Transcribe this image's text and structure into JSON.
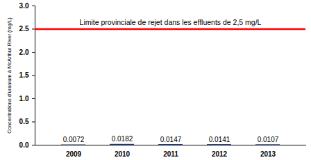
{
  "chart_data": {
    "type": "bar",
    "y_label": "Concentrations d'uranium à McArthur River (mg/L)",
    "categories": [
      "2009",
      "2010",
      "2011",
      "2012",
      "2013"
    ],
    "values": [
      0.0072,
      0.0182,
      0.0147,
      0.0141,
      0.0107
    ],
    "color": "#1f3f8f",
    "data_labels": true,
    "ylim": [
      0,
      3
    ],
    "yticks": [
      {
        "value": 0,
        "label": "0.0"
      },
      {
        "value": 0.5,
        "label": "0.5"
      },
      {
        "value": 1,
        "label": "1.0"
      },
      {
        "value": 1.5,
        "label": "1.5"
      },
      {
        "value": 2,
        "label": "2.0"
      },
      {
        "value": 2.5,
        "label": "2.5"
      },
      {
        "value": 3,
        "label": "3.0"
      }
    ],
    "annotations": [
      {
        "text": "Limite provinciale de rejet dans les effluents de 2,5 mg/L",
        "y": 2.5,
        "color": "#ff0000"
      }
    ]
  }
}
